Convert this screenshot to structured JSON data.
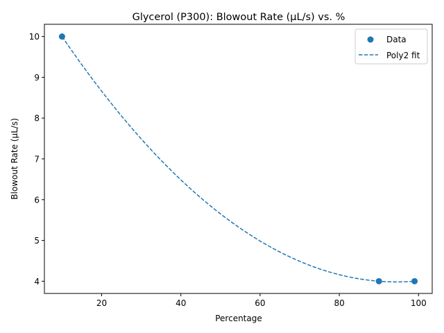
{
  "chart_data": {
    "type": "scatter",
    "title": "Glycerol (P300): Blowout Rate (µL/s) vs. %",
    "xlabel": "Percentage",
    "ylabel": "Blowout Rate (µL/s)",
    "xlim": [
      5.55,
      103.45
    ],
    "ylim": [
      3.7,
      10.3
    ],
    "xticks": [
      20,
      40,
      60,
      80,
      100
    ],
    "yticks": [
      4,
      5,
      6,
      7,
      8,
      9,
      10
    ],
    "grid": false,
    "legend_position": "top-right",
    "series": [
      {
        "name": "Data",
        "kind": "scatter",
        "color": "#1f77b4",
        "x": [
          10,
          90,
          99
        ],
        "y": [
          10,
          4,
          4
        ]
      },
      {
        "name": "Poly2 fit",
        "kind": "line",
        "style": "dashed",
        "color": "#1f77b4",
        "x": [
          10,
          99
        ],
        "fit": "poly2"
      }
    ]
  }
}
